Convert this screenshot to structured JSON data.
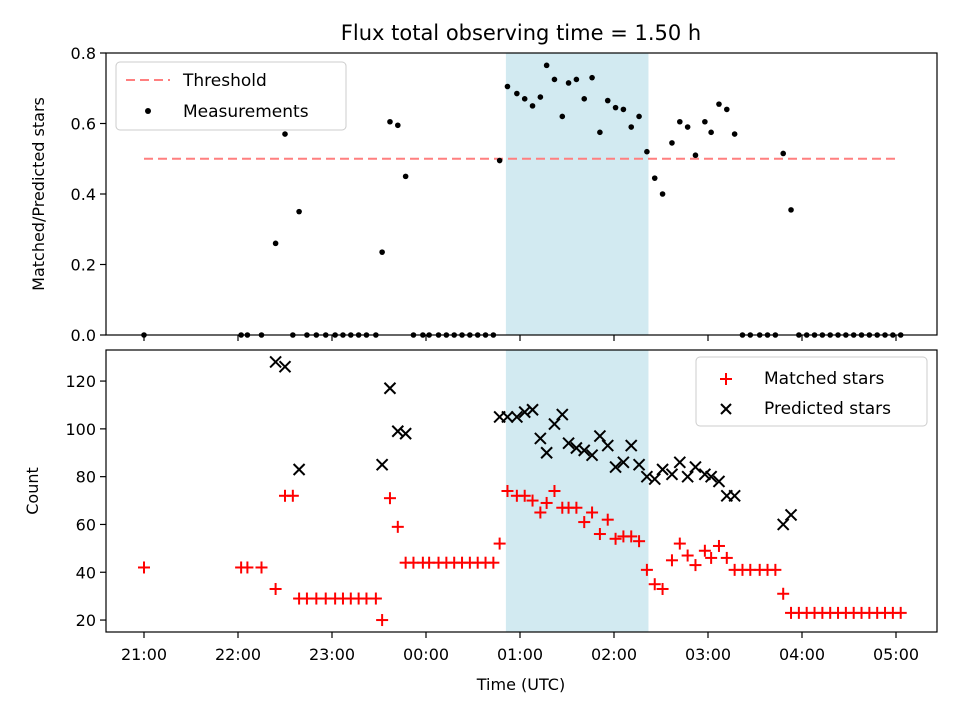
{
  "figure": {
    "title": "Flux total observing time = 1.50 h",
    "xlabel": "Time (UTC)",
    "x_ticks": [
      "21:00",
      "22:00",
      "23:00",
      "00:00",
      "01:00",
      "02:00",
      "03:00",
      "04:00",
      "05:00"
    ],
    "highlight_span": [
      "00:51",
      "02:22"
    ],
    "highlight_color": "#add8e6"
  },
  "chart_data": [
    {
      "type": "scatter",
      "ylabel": "Matched/Predicted stars",
      "ylim": [
        0,
        0.8
      ],
      "y_ticks": [
        "0.0",
        "0.2",
        "0.4",
        "0.6",
        "0.8"
      ],
      "legend_placement": "top-left",
      "legend": [
        {
          "label": "Threshold",
          "color": "#ff7f7f",
          "marker": "dashed-line"
        },
        {
          "label": "Measurements",
          "color": "#000000",
          "marker": "dot"
        }
      ],
      "threshold": {
        "y": 0.5,
        "x_range": [
          "21:00",
          "05:00"
        ]
      },
      "series": [
        {
          "name": "Measurements",
          "points": [
            [
              "21:00",
              0
            ],
            [
              "22:02",
              0
            ],
            [
              "22:06",
              0
            ],
            [
              "22:15",
              0
            ],
            [
              "22:24",
              0.26
            ],
            [
              "22:30",
              0.57
            ],
            [
              "22:35",
              0
            ],
            [
              "22:39",
              0.35
            ],
            [
              "22:44",
              0
            ],
            [
              "22:50",
              0
            ],
            [
              "22:56",
              0
            ],
            [
              "23:02",
              0
            ],
            [
              "23:07",
              0
            ],
            [
              "23:12",
              0
            ],
            [
              "23:17",
              0
            ],
            [
              "23:22",
              0
            ],
            [
              "23:28",
              0
            ],
            [
              "23:32",
              0.235
            ],
            [
              "23:37",
              0.605
            ],
            [
              "23:42",
              0.595
            ],
            [
              "23:47",
              0.45
            ],
            [
              "23:52",
              0
            ],
            [
              "23:58",
              0
            ],
            [
              "00:02",
              0
            ],
            [
              "00:08",
              0
            ],
            [
              "00:13",
              0
            ],
            [
              "00:18",
              0
            ],
            [
              "00:23",
              0
            ],
            [
              "00:28",
              0
            ],
            [
              "00:33",
              0
            ],
            [
              "00:38",
              0
            ],
            [
              "00:43",
              0
            ],
            [
              "00:47",
              0.495
            ],
            [
              "00:52",
              0.705
            ],
            [
              "00:58",
              0.685
            ],
            [
              "01:03",
              0.67
            ],
            [
              "01:08",
              0.65
            ],
            [
              "01:13",
              0.675
            ],
            [
              "01:17",
              0.765
            ],
            [
              "01:22",
              0.725
            ],
            [
              "01:27",
              0.62
            ],
            [
              "01:31",
              0.715
            ],
            [
              "01:36",
              0.725
            ],
            [
              "01:41",
              0.67
            ],
            [
              "01:46",
              0.73
            ],
            [
              "01:51",
              0.575
            ],
            [
              "01:56",
              0.665
            ],
            [
              "02:01",
              0.645
            ],
            [
              "02:06",
              0.64
            ],
            [
              "02:11",
              0.59
            ],
            [
              "02:16",
              0.62
            ],
            [
              "02:21",
              0.52
            ],
            [
              "02:26",
              0.445
            ],
            [
              "02:31",
              0.4
            ],
            [
              "02:37",
              0.545
            ],
            [
              "02:42",
              0.605
            ],
            [
              "02:47",
              0.59
            ],
            [
              "02:52",
              0.51
            ],
            [
              "02:58",
              0.605
            ],
            [
              "03:02",
              0.575
            ],
            [
              "03:07",
              0.655
            ],
            [
              "03:12",
              0.64
            ],
            [
              "03:17",
              0.57
            ],
            [
              "03:22",
              0
            ],
            [
              "03:27",
              0
            ],
            [
              "03:33",
              0
            ],
            [
              "03:38",
              0
            ],
            [
              "03:43",
              0
            ],
            [
              "03:48",
              0.515
            ],
            [
              "03:53",
              0.355
            ],
            [
              "03:58",
              0
            ],
            [
              "04:03",
              0
            ],
            [
              "04:08",
              0
            ],
            [
              "04:13",
              0
            ],
            [
              "04:18",
              0
            ],
            [
              "04:23",
              0
            ],
            [
              "04:28",
              0
            ],
            [
              "04:33",
              0
            ],
            [
              "04:38",
              0
            ],
            [
              "04:43",
              0
            ],
            [
              "04:48",
              0
            ],
            [
              "04:53",
              0
            ],
            [
              "04:58",
              0
            ],
            [
              "05:03",
              0
            ]
          ]
        }
      ]
    },
    {
      "type": "scatter",
      "ylabel": "Count",
      "ylim": [
        15,
        133
      ],
      "y_ticks": [
        "20",
        "40",
        "60",
        "80",
        "100",
        "120"
      ],
      "legend_placement": "top-right",
      "legend": [
        {
          "label": "Matched stars",
          "color": "#ff0000",
          "marker": "plus"
        },
        {
          "label": "Predicted stars",
          "color": "#000000",
          "marker": "x"
        }
      ],
      "series": [
        {
          "name": "Matched stars",
          "points": [
            [
              "21:00",
              42
            ],
            [
              "22:02",
              42
            ],
            [
              "22:06",
              42
            ],
            [
              "22:15",
              42
            ],
            [
              "22:24",
              33
            ],
            [
              "22:30",
              72
            ],
            [
              "22:35",
              72
            ],
            [
              "22:39",
              29
            ],
            [
              "22:44",
              29
            ],
            [
              "22:50",
              29
            ],
            [
              "22:56",
              29
            ],
            [
              "23:02",
              29
            ],
            [
              "23:07",
              29
            ],
            [
              "23:12",
              29
            ],
            [
              "23:17",
              29
            ],
            [
              "23:22",
              29
            ],
            [
              "23:28",
              29
            ],
            [
              "23:32",
              20
            ],
            [
              "23:37",
              71
            ],
            [
              "23:42",
              59
            ],
            [
              "23:47",
              44
            ],
            [
              "23:52",
              44
            ],
            [
              "23:58",
              44
            ],
            [
              "00:02",
              44
            ],
            [
              "00:08",
              44
            ],
            [
              "00:13",
              44
            ],
            [
              "00:18",
              44
            ],
            [
              "00:23",
              44
            ],
            [
              "00:28",
              44
            ],
            [
              "00:33",
              44
            ],
            [
              "00:38",
              44
            ],
            [
              "00:43",
              44
            ],
            [
              "00:47",
              52
            ],
            [
              "00:52",
              74
            ],
            [
              "00:58",
              72
            ],
            [
              "01:03",
              72
            ],
            [
              "01:08",
              70
            ],
            [
              "01:13",
              65
            ],
            [
              "01:17",
              69
            ],
            [
              "01:22",
              74
            ],
            [
              "01:27",
              67
            ],
            [
              "01:31",
              67
            ],
            [
              "01:36",
              67
            ],
            [
              "01:41",
              61
            ],
            [
              "01:46",
              65
            ],
            [
              "01:51",
              56
            ],
            [
              "01:56",
              62
            ],
            [
              "02:01",
              54
            ],
            [
              "02:06",
              55
            ],
            [
              "02:11",
              55
            ],
            [
              "02:16",
              53
            ],
            [
              "02:21",
              41
            ],
            [
              "02:26",
              35
            ],
            [
              "02:31",
              33
            ],
            [
              "02:37",
              45
            ],
            [
              "02:42",
              52
            ],
            [
              "02:47",
              47
            ],
            [
              "02:52",
              43
            ],
            [
              "02:58",
              49
            ],
            [
              "03:02",
              46
            ],
            [
              "03:07",
              51
            ],
            [
              "03:12",
              46
            ],
            [
              "03:17",
              41
            ],
            [
              "03:22",
              41
            ],
            [
              "03:27",
              41
            ],
            [
              "03:33",
              41
            ],
            [
              "03:38",
              41
            ],
            [
              "03:43",
              41
            ],
            [
              "03:48",
              31
            ],
            [
              "03:53",
              23
            ],
            [
              "03:58",
              23
            ],
            [
              "04:03",
              23
            ],
            [
              "04:08",
              23
            ],
            [
              "04:13",
              23
            ],
            [
              "04:18",
              23
            ],
            [
              "04:23",
              23
            ],
            [
              "04:28",
              23
            ],
            [
              "04:33",
              23
            ],
            [
              "04:38",
              23
            ],
            [
              "04:43",
              23
            ],
            [
              "04:48",
              23
            ],
            [
              "04:53",
              23
            ],
            [
              "04:58",
              23
            ],
            [
              "05:03",
              23
            ]
          ]
        },
        {
          "name": "Predicted stars",
          "points": [
            [
              "22:24",
              128
            ],
            [
              "22:30",
              126
            ],
            [
              "22:39",
              83
            ],
            [
              "23:32",
              85
            ],
            [
              "23:37",
              117
            ],
            [
              "23:42",
              99
            ],
            [
              "23:47",
              98
            ],
            [
              "00:47",
              105
            ],
            [
              "00:52",
              105
            ],
            [
              "00:58",
              105
            ],
            [
              "01:03",
              107
            ],
            [
              "01:08",
              108
            ],
            [
              "01:13",
              96
            ],
            [
              "01:17",
              90
            ],
            [
              "01:22",
              102
            ],
            [
              "01:27",
              106
            ],
            [
              "01:31",
              94
            ],
            [
              "01:36",
              92
            ],
            [
              "01:41",
              91
            ],
            [
              "01:46",
              89
            ],
            [
              "01:51",
              97
            ],
            [
              "01:56",
              93
            ],
            [
              "02:01",
              84
            ],
            [
              "02:06",
              86
            ],
            [
              "02:11",
              93
            ],
            [
              "02:16",
              85
            ],
            [
              "02:21",
              80
            ],
            [
              "02:26",
              79
            ],
            [
              "02:31",
              83
            ],
            [
              "02:37",
              81
            ],
            [
              "02:42",
              86
            ],
            [
              "02:47",
              80
            ],
            [
              "02:52",
              84
            ],
            [
              "02:58",
              81
            ],
            [
              "03:02",
              80
            ],
            [
              "03:07",
              78
            ],
            [
              "03:12",
              72
            ],
            [
              "03:17",
              72
            ],
            [
              "03:48",
              60
            ],
            [
              "03:53",
              64
            ]
          ]
        }
      ]
    }
  ]
}
